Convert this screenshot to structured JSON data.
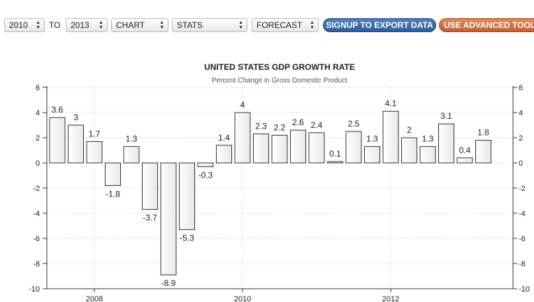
{
  "toolbar": {
    "from_year": "2010",
    "to_label": "TO",
    "to_year": "2013",
    "chart_select": "CHART",
    "stats_select": "STATS",
    "forecast_select": "FORECAST",
    "signup_button": "SIGNUP TO EXPORT DATA",
    "advanced_button": "USE ADVANCED TOOLS"
  },
  "colors": {
    "signup_button": "#2d5f9a",
    "advanced_button": "#c4602f",
    "bar_fill": "#e8e8e8",
    "bar_stroke": "#333333"
  },
  "chart_data": {
    "type": "bar",
    "title": "UNITED STATES GDP GROWTH RATE",
    "subtitle": "Percent Change in Gross Domestic Product",
    "xlabel": "",
    "ylabel": "",
    "ylim": [
      -10,
      6
    ],
    "yticks": [
      -10,
      -8,
      -6,
      -4,
      -2,
      0,
      2,
      4,
      6
    ],
    "grid": true,
    "x_tick_labels": [
      {
        "label": "2008",
        "quarter_index": 2
      },
      {
        "label": "2010",
        "quarter_index": 10
      },
      {
        "label": "2012",
        "quarter_index": 18
      }
    ],
    "values": [
      3.6,
      3,
      1.7,
      -1.8,
      1.3,
      -3.7,
      -8.9,
      -5.3,
      -0.3,
      1.4,
      4,
      2.3,
      2.2,
      2.6,
      2.4,
      0.1,
      2.5,
      1.3,
      4.1,
      2,
      1.3,
      3.1,
      0.4,
      1.8
    ],
    "data_labels": [
      "3.6",
      "3",
      "1.7",
      "-1.8",
      "1.3",
      "-3.7",
      "-8.9",
      "-5.3",
      "-0.3",
      "1.4",
      "4",
      "2.3",
      "2.2",
      "2.6",
      "2.4",
      "0.1",
      "2.5",
      "1.3",
      "4.1",
      "2",
      "1.3",
      "3.1",
      "0.4",
      "1.8"
    ]
  }
}
